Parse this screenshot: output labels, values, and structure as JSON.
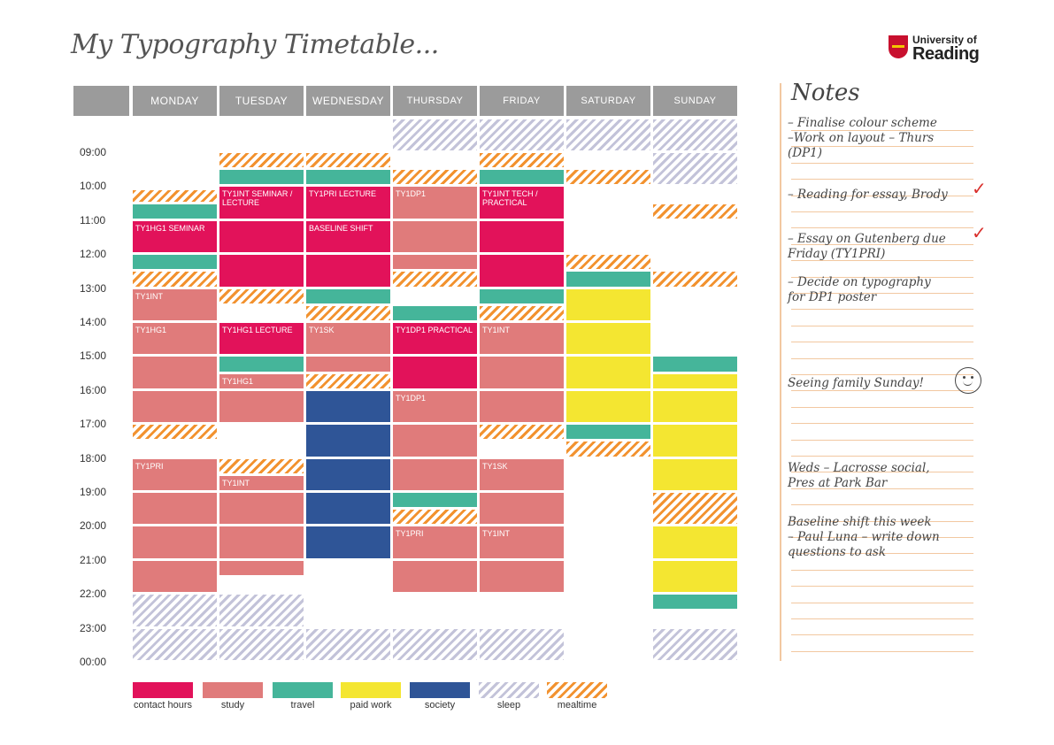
{
  "title": "My Typography Timetable...",
  "logo": {
    "line1": "University of",
    "line2": "Reading"
  },
  "days": [
    "MONDAY",
    "TUESDAY",
    "WEDNESDAY",
    "THURSDAY",
    "FRIDAY",
    "SATURDAY",
    "SUNDAY"
  ],
  "times": [
    "09:00",
    "10:00",
    "11:00",
    "12:00",
    "13:00",
    "14:00",
    "15:00",
    "16:00",
    "17:00",
    "18:00",
    "19:00",
    "20:00",
    "21:00",
    "22:00",
    "23:00",
    "00:00"
  ],
  "colors": {
    "contact": "#e2125a",
    "study": "#e07b7b",
    "travel": "#45b59a",
    "paid": "#f4e631",
    "society": "#2f5597",
    "sleep": "#c3c3d9",
    "meal": "#f2922f"
  },
  "schedule": [
    {
      "day": 0,
      "start": "10:05",
      "end": "10:30",
      "type": "meal"
    },
    {
      "day": 0,
      "start": "10:30",
      "end": "11:00",
      "type": "travel"
    },
    {
      "day": 0,
      "start": "11:00",
      "end": "12:00",
      "type": "contact",
      "label": "TY1HG1 SEMINAR"
    },
    {
      "day": 0,
      "start": "12:00",
      "end": "12:30",
      "type": "travel"
    },
    {
      "day": 0,
      "start": "12:30",
      "end": "13:00",
      "type": "meal"
    },
    {
      "day": 0,
      "start": "13:00",
      "end": "14:00",
      "type": "study",
      "label": "TY1INT"
    },
    {
      "day": 0,
      "start": "14:00",
      "end": "15:00",
      "type": "study",
      "label": "TY1HG1"
    },
    {
      "day": 0,
      "start": "15:00",
      "end": "16:00",
      "type": "study"
    },
    {
      "day": 0,
      "start": "16:00",
      "end": "17:00",
      "type": "study"
    },
    {
      "day": 0,
      "start": "17:00",
      "end": "17:30",
      "type": "meal"
    },
    {
      "day": 0,
      "start": "18:00",
      "end": "19:00",
      "type": "study",
      "label": "TY1PRI"
    },
    {
      "day": 0,
      "start": "19:00",
      "end": "20:00",
      "type": "study"
    },
    {
      "day": 0,
      "start": "20:00",
      "end": "21:00",
      "type": "study"
    },
    {
      "day": 0,
      "start": "21:00",
      "end": "22:00",
      "type": "study"
    },
    {
      "day": 0,
      "start": "22:00",
      "end": "23:00",
      "type": "sleep"
    },
    {
      "day": 0,
      "start": "23:00",
      "end": "00:00",
      "type": "sleep"
    },
    {
      "day": 1,
      "start": "09:00",
      "end": "09:30",
      "type": "meal"
    },
    {
      "day": 1,
      "start": "09:30",
      "end": "10:00",
      "type": "travel"
    },
    {
      "day": 1,
      "start": "10:00",
      "end": "11:00",
      "type": "contact",
      "label": "TY1INT SEMINAR / LECTURE"
    },
    {
      "day": 1,
      "start": "11:00",
      "end": "12:00",
      "type": "contact"
    },
    {
      "day": 1,
      "start": "12:00",
      "end": "13:00",
      "type": "contact"
    },
    {
      "day": 1,
      "start": "13:00",
      "end": "13:30",
      "type": "meal"
    },
    {
      "day": 1,
      "start": "14:00",
      "end": "15:00",
      "type": "contact",
      "label": "TY1HG1 LECTURE"
    },
    {
      "day": 1,
      "start": "15:00",
      "end": "15:30",
      "type": "travel"
    },
    {
      "day": 1,
      "start": "15:30",
      "end": "16:00",
      "type": "study",
      "label": "TY1HG1"
    },
    {
      "day": 1,
      "start": "16:00",
      "end": "17:00",
      "type": "study"
    },
    {
      "day": 1,
      "start": "18:00",
      "end": "18:30",
      "type": "meal"
    },
    {
      "day": 1,
      "start": "18:30",
      "end": "19:00",
      "type": "study",
      "label": "TY1INT"
    },
    {
      "day": 1,
      "start": "19:00",
      "end": "20:00",
      "type": "study"
    },
    {
      "day": 1,
      "start": "20:00",
      "end": "21:00",
      "type": "study"
    },
    {
      "day": 1,
      "start": "21:00",
      "end": "21:30",
      "type": "study"
    },
    {
      "day": 1,
      "start": "22:00",
      "end": "23:00",
      "type": "sleep"
    },
    {
      "day": 1,
      "start": "23:00",
      "end": "00:00",
      "type": "sleep"
    },
    {
      "day": 2,
      "start": "09:00",
      "end": "09:30",
      "type": "meal"
    },
    {
      "day": 2,
      "start": "09:30",
      "end": "10:00",
      "type": "travel"
    },
    {
      "day": 2,
      "start": "10:00",
      "end": "11:00",
      "type": "contact",
      "label": "TY1PRI LECTURE"
    },
    {
      "day": 2,
      "start": "11:00",
      "end": "12:00",
      "type": "contact",
      "label": "BASELINE SHIFT"
    },
    {
      "day": 2,
      "start": "12:00",
      "end": "13:00",
      "type": "contact"
    },
    {
      "day": 2,
      "start": "13:00",
      "end": "13:30",
      "type": "travel"
    },
    {
      "day": 2,
      "start": "13:30",
      "end": "14:00",
      "type": "meal"
    },
    {
      "day": 2,
      "start": "14:00",
      "end": "15:00",
      "type": "study",
      "label": "TY1SK"
    },
    {
      "day": 2,
      "start": "15:00",
      "end": "15:30",
      "type": "study"
    },
    {
      "day": 2,
      "start": "15:30",
      "end": "16:00",
      "type": "meal"
    },
    {
      "day": 2,
      "start": "16:00",
      "end": "17:00",
      "type": "society"
    },
    {
      "day": 2,
      "start": "17:00",
      "end": "18:00",
      "type": "society"
    },
    {
      "day": 2,
      "start": "18:00",
      "end": "19:00",
      "type": "society"
    },
    {
      "day": 2,
      "start": "19:00",
      "end": "20:00",
      "type": "society"
    },
    {
      "day": 2,
      "start": "20:00",
      "end": "21:00",
      "type": "society"
    },
    {
      "day": 2,
      "start": "23:00",
      "end": "00:00",
      "type": "sleep"
    },
    {
      "day": 3,
      "start": "08:00",
      "end": "09:00",
      "type": "sleep"
    },
    {
      "day": 3,
      "start": "09:30",
      "end": "10:00",
      "type": "meal"
    },
    {
      "day": 3,
      "start": "10:00",
      "end": "11:00",
      "type": "study",
      "label": "TY1DP1"
    },
    {
      "day": 3,
      "start": "11:00",
      "end": "12:00",
      "type": "study"
    },
    {
      "day": 3,
      "start": "12:00",
      "end": "12:30",
      "type": "study"
    },
    {
      "day": 3,
      "start": "12:30",
      "end": "13:00",
      "type": "meal"
    },
    {
      "day": 3,
      "start": "13:30",
      "end": "14:00",
      "type": "travel"
    },
    {
      "day": 3,
      "start": "14:00",
      "end": "15:00",
      "type": "contact",
      "label": "TY1DP1 PRACTICAL"
    },
    {
      "day": 3,
      "start": "15:00",
      "end": "16:00",
      "type": "contact"
    },
    {
      "day": 3,
      "start": "16:00",
      "end": "17:00",
      "type": "study",
      "label": "TY1DP1"
    },
    {
      "day": 3,
      "start": "17:00",
      "end": "18:00",
      "type": "study"
    },
    {
      "day": 3,
      "start": "18:00",
      "end": "19:00",
      "type": "study"
    },
    {
      "day": 3,
      "start": "19:00",
      "end": "19:30",
      "type": "travel"
    },
    {
      "day": 3,
      "start": "19:30",
      "end": "20:00",
      "type": "meal"
    },
    {
      "day": 3,
      "start": "20:00",
      "end": "21:00",
      "type": "study",
      "label": "TY1PRI"
    },
    {
      "day": 3,
      "start": "21:00",
      "end": "22:00",
      "type": "study"
    },
    {
      "day": 3,
      "start": "23:00",
      "end": "00:00",
      "type": "sleep"
    },
    {
      "day": 4,
      "start": "08:00",
      "end": "09:00",
      "type": "sleep"
    },
    {
      "day": 4,
      "start": "09:00",
      "end": "09:30",
      "type": "meal"
    },
    {
      "day": 4,
      "start": "09:30",
      "end": "10:00",
      "type": "travel"
    },
    {
      "day": 4,
      "start": "10:00",
      "end": "11:00",
      "type": "contact",
      "label": "TY1INT TECH / PRACTICAL"
    },
    {
      "day": 4,
      "start": "11:00",
      "end": "12:00",
      "type": "contact"
    },
    {
      "day": 4,
      "start": "12:00",
      "end": "13:00",
      "type": "contact"
    },
    {
      "day": 4,
      "start": "13:00",
      "end": "13:30",
      "type": "travel"
    },
    {
      "day": 4,
      "start": "13:30",
      "end": "14:00",
      "type": "meal"
    },
    {
      "day": 4,
      "start": "14:00",
      "end": "15:00",
      "type": "study",
      "label": "TY1INT"
    },
    {
      "day": 4,
      "start": "15:00",
      "end": "16:00",
      "type": "study"
    },
    {
      "day": 4,
      "start": "16:00",
      "end": "17:00",
      "type": "study"
    },
    {
      "day": 4,
      "start": "17:00",
      "end": "17:30",
      "type": "meal"
    },
    {
      "day": 4,
      "start": "18:00",
      "end": "19:00",
      "type": "study",
      "label": "TY1SK"
    },
    {
      "day": 4,
      "start": "19:00",
      "end": "20:00",
      "type": "study"
    },
    {
      "day": 4,
      "start": "20:00",
      "end": "21:00",
      "type": "study",
      "label": "TY1INT"
    },
    {
      "day": 4,
      "start": "21:00",
      "end": "22:00",
      "type": "study"
    },
    {
      "day": 4,
      "start": "23:00",
      "end": "00:00",
      "type": "sleep"
    },
    {
      "day": 5,
      "start": "08:00",
      "end": "09:00",
      "type": "sleep"
    },
    {
      "day": 5,
      "start": "09:30",
      "end": "10:00",
      "type": "meal"
    },
    {
      "day": 5,
      "start": "12:00",
      "end": "12:30",
      "type": "meal"
    },
    {
      "day": 5,
      "start": "12:30",
      "end": "13:00",
      "type": "travel"
    },
    {
      "day": 5,
      "start": "13:00",
      "end": "14:00",
      "type": "paid"
    },
    {
      "day": 5,
      "start": "14:00",
      "end": "15:00",
      "type": "paid"
    },
    {
      "day": 5,
      "start": "15:00",
      "end": "16:00",
      "type": "paid"
    },
    {
      "day": 5,
      "start": "16:00",
      "end": "17:00",
      "type": "paid"
    },
    {
      "day": 5,
      "start": "17:00",
      "end": "17:30",
      "type": "travel"
    },
    {
      "day": 5,
      "start": "17:30",
      "end": "18:00",
      "type": "meal"
    },
    {
      "day": 6,
      "start": "08:00",
      "end": "09:00",
      "type": "sleep"
    },
    {
      "day": 6,
      "start": "09:00",
      "end": "10:00",
      "type": "sleep"
    },
    {
      "day": 6,
      "start": "10:30",
      "end": "11:00",
      "type": "meal"
    },
    {
      "day": 6,
      "start": "12:30",
      "end": "13:00",
      "type": "meal"
    },
    {
      "day": 6,
      "start": "15:00",
      "end": "15:30",
      "type": "travel"
    },
    {
      "day": 6,
      "start": "15:30",
      "end": "16:00",
      "type": "paid"
    },
    {
      "day": 6,
      "start": "16:00",
      "end": "17:00",
      "type": "paid"
    },
    {
      "day": 6,
      "start": "17:00",
      "end": "18:00",
      "type": "paid"
    },
    {
      "day": 6,
      "start": "18:00",
      "end": "19:00",
      "type": "paid"
    },
    {
      "day": 6,
      "start": "19:00",
      "end": "20:00",
      "type": "meal"
    },
    {
      "day": 6,
      "start": "20:00",
      "end": "21:00",
      "type": "paid"
    },
    {
      "day": 6,
      "start": "21:00",
      "end": "22:00",
      "type": "paid"
    },
    {
      "day": 6,
      "start": "22:00",
      "end": "22:30",
      "type": "travel"
    },
    {
      "day": 6,
      "start": "23:00",
      "end": "00:00",
      "type": "sleep"
    }
  ],
  "legend": [
    {
      "type": "contact",
      "label": "contact hours"
    },
    {
      "type": "study",
      "label": "study"
    },
    {
      "type": "travel",
      "label": "travel"
    },
    {
      "type": "paid",
      "label": "paid work"
    },
    {
      "type": "society",
      "label": "society"
    },
    {
      "type": "sleep",
      "label": "sleep"
    },
    {
      "type": "meal",
      "label": "mealtime"
    }
  ],
  "notes": {
    "title": "Notes",
    "entries": [
      "– Finalise colour scheme\n–Work on layout – Thurs\n(DP1)",
      "– Reading for essay, Brody",
      "– Essay on Gutenberg due\nFriday (TY1PRI)",
      "– Decide on typography\nfor DP1 poster",
      "Seeing family Sunday!",
      "Weds – Lacrosse social,\nPres at Park Bar",
      "Baseline shift this week\n– Paul Luna – write down\nquestions to ask"
    ]
  }
}
